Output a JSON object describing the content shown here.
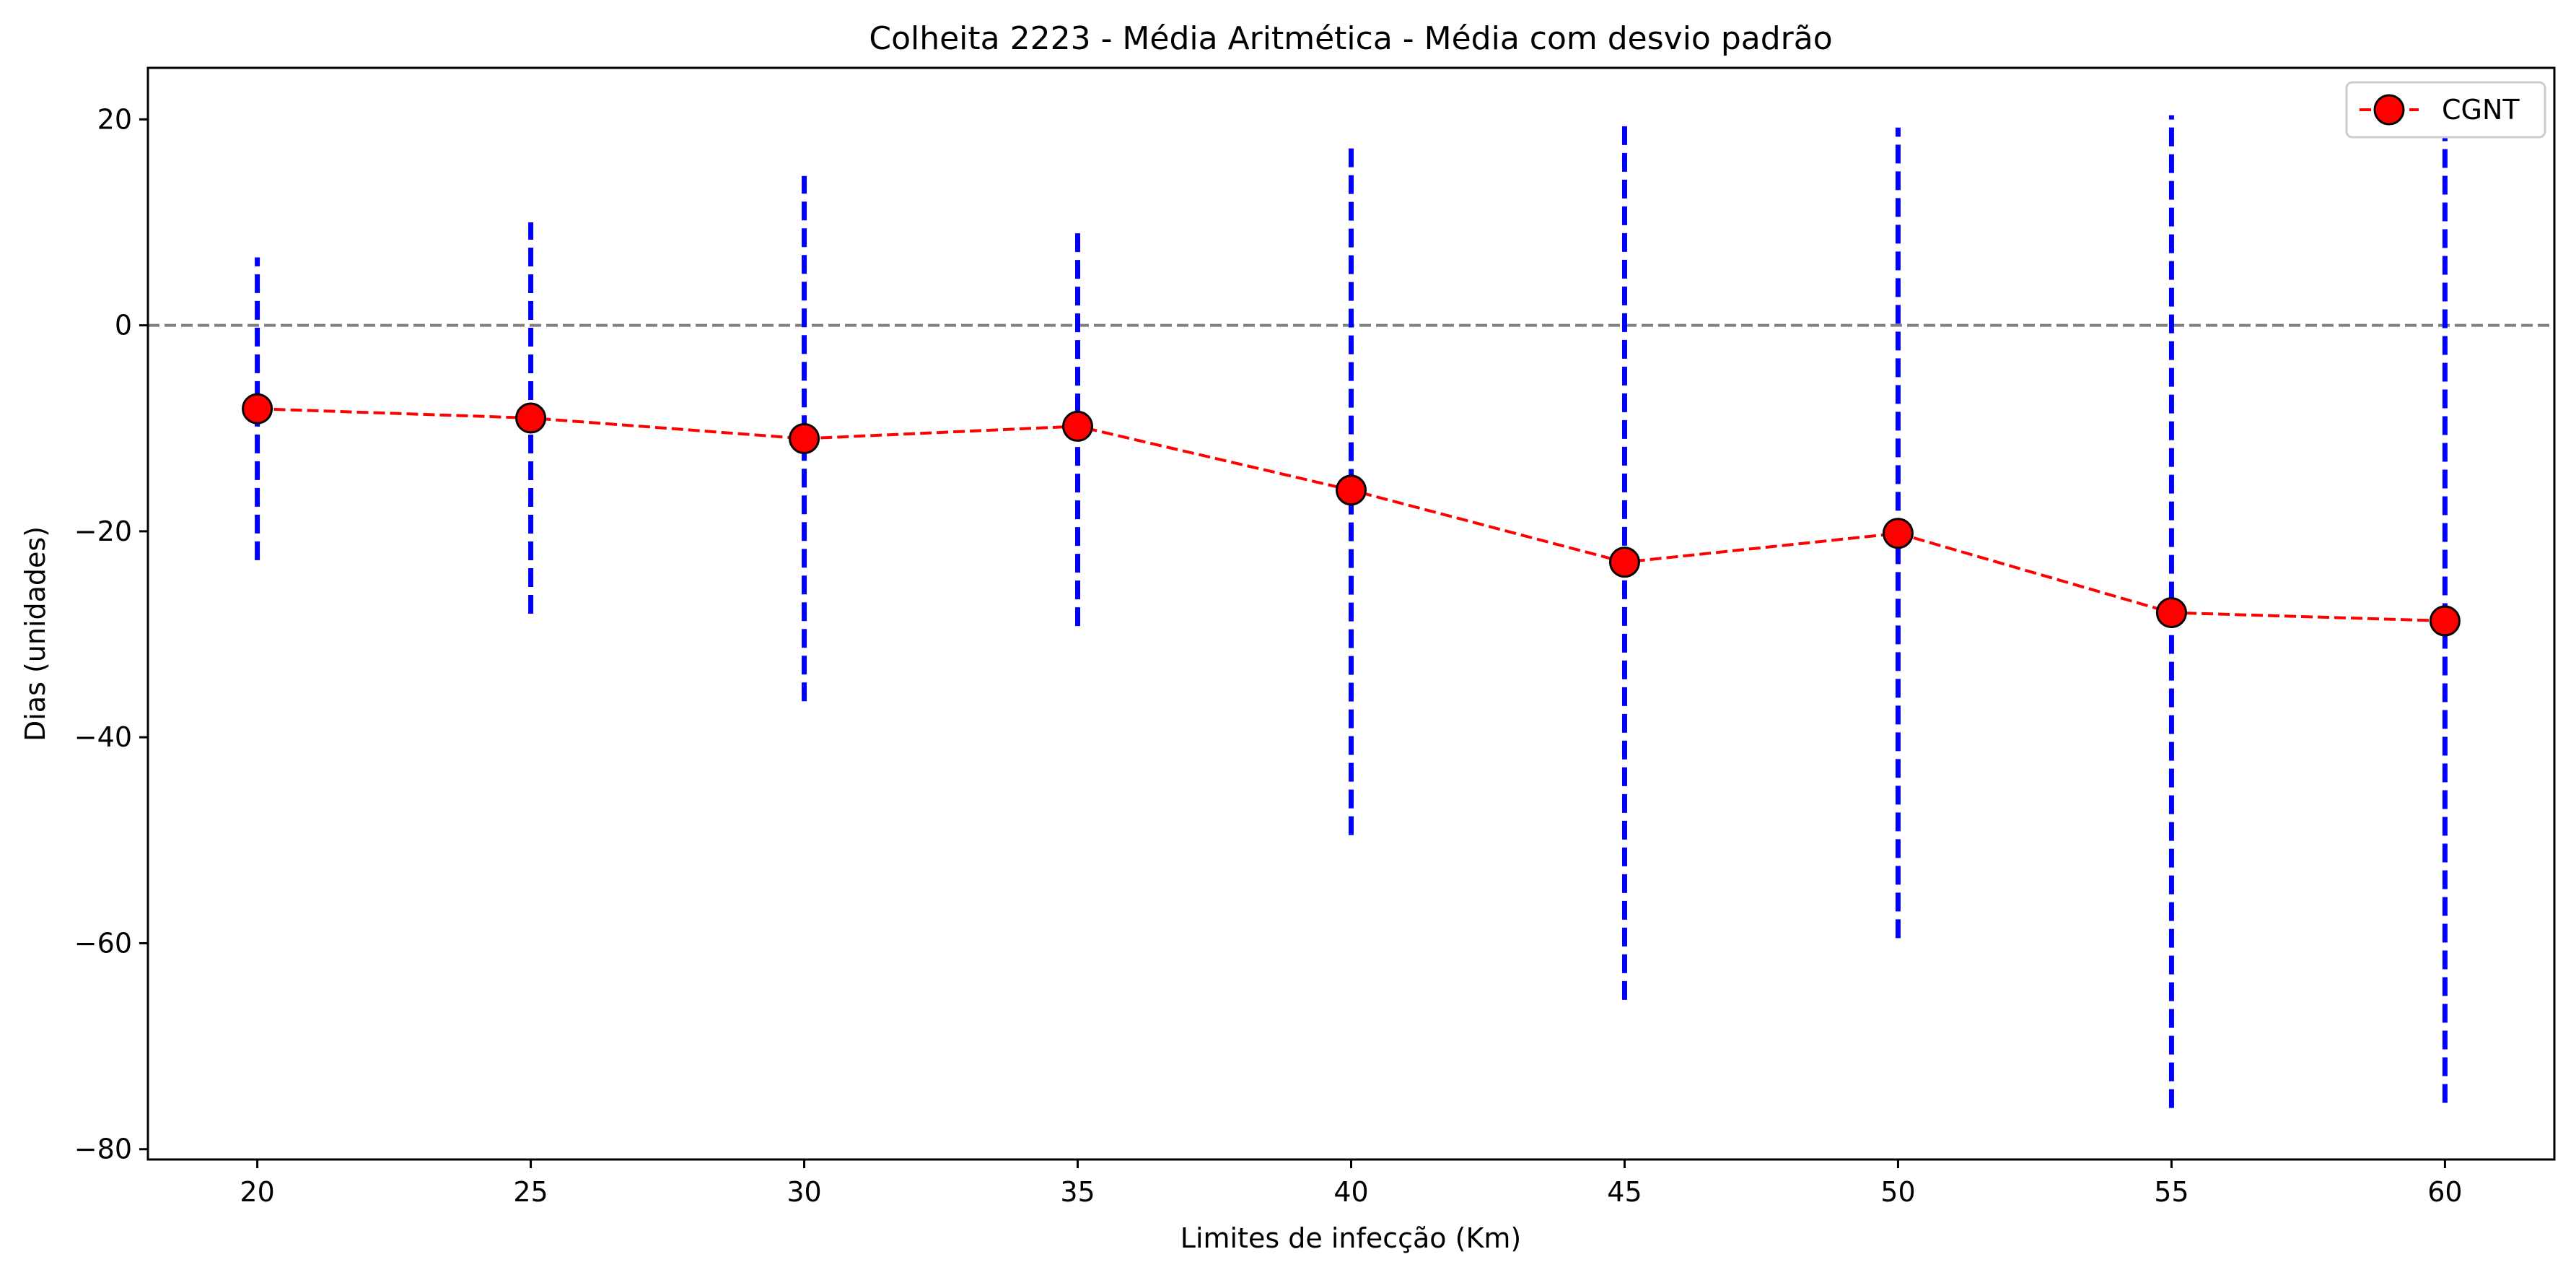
{
  "chart_data": {
    "type": "line",
    "title": "Colheita 2223 - Média Aritmética - Média com desvio padrão",
    "xlabel": "Limites de infecção (Km)",
    "ylabel": "Dias (unidades)",
    "x": [
      20,
      25,
      30,
      35,
      40,
      45,
      50,
      55,
      60
    ],
    "xlim": [
      18,
      62
    ],
    "ylim": [
      -81,
      25
    ],
    "xticks": [
      20,
      25,
      30,
      35,
      40,
      45,
      50,
      55,
      60
    ],
    "yticks": [
      20,
      0,
      -20,
      -40,
      -60,
      -80
    ],
    "reference_line": {
      "y": 0,
      "color": "#808080",
      "style": "dashed"
    },
    "series": [
      {
        "name": "CGNT",
        "values": [
          -8.1,
          -9.0,
          -11.0,
          -9.8,
          -16.0,
          -23.0,
          -20.2,
          -27.9,
          -28.7
        ],
        "error_low": [
          -22.8,
          -28.0,
          -36.5,
          -29.2,
          -49.5,
          -65.5,
          -59.5,
          -76.0,
          -75.5
        ],
        "error_high": [
          6.6,
          10.0,
          14.5,
          9.6,
          17.6,
          19.6,
          19.2,
          20.4,
          19.2
        ],
        "line_color": "#ff0000",
        "marker_color": "#ff0000",
        "error_color": "#0000ff"
      }
    ],
    "legend_position": "top-right",
    "grid": false
  }
}
